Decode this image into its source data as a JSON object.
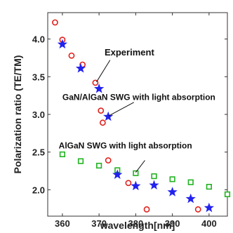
{
  "chart_data": {
    "type": "scatter",
    "xlabel": "wavelength[nm]",
    "ylabel": "Polarization ratio (TE/TM)",
    "xlim": [
      356,
      405
    ],
    "ylim": [
      1.65,
      4.35
    ],
    "xticks": [
      360,
      370,
      380,
      390,
      400
    ],
    "yticks": [
      2.0,
      2.5,
      3.0,
      3.5,
      4.0
    ],
    "series": [
      {
        "marker": "circle",
        "color": "#e0211d",
        "x": [
          358,
          360,
          362.5,
          365.5,
          369,
          370.5,
          371,
          372.5,
          378,
          383,
          397
        ],
        "y": [
          4.22,
          3.99,
          3.78,
          3.66,
          3.42,
          3.05,
          2.89,
          2.39,
          2.09,
          1.74,
          1.74
        ]
      },
      {
        "marker": "square",
        "color": "#22b222",
        "x": [
          360,
          365,
          370,
          375,
          380,
          385,
          390,
          395,
          400,
          405
        ],
        "y": [
          2.47,
          2.38,
          2.32,
          2.26,
          2.22,
          2.18,
          2.14,
          2.1,
          2.04,
          1.94
        ]
      },
      {
        "marker": "star",
        "color": "#2222ee",
        "x": [
          360,
          365,
          370,
          372.5,
          375,
          380,
          385,
          390,
          395,
          400
        ],
        "y": [
          3.93,
          3.61,
          3.34,
          2.97,
          2.2,
          2.05,
          2.06,
          1.97,
          1.88,
          1.76
        ]
      }
    ],
    "annotations": [
      {
        "text": "Experiment",
        "x": 371.5,
        "y": 3.78
      },
      {
        "text": "GaN/AlGaN SWG with light absorption",
        "x": 360,
        "y": 3.19
      },
      {
        "text": "AlGaN SWG with light absorption",
        "x": 359,
        "y": 2.55
      }
    ]
  }
}
